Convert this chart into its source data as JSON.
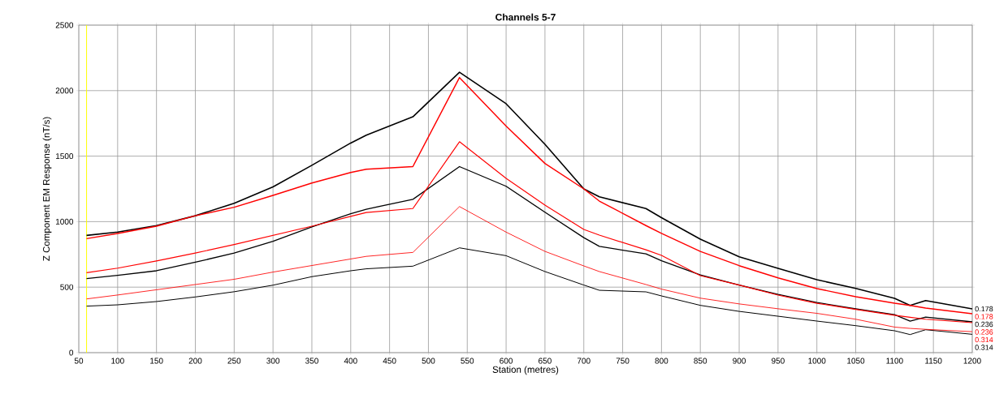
{
  "chart_data": {
    "type": "line",
    "title": "Channels 5-7",
    "xlabel": "Station (metres)",
    "ylabel": "Z Component EM Response (nT/s)",
    "x": [
      60,
      100,
      150,
      200,
      250,
      300,
      350,
      400,
      420,
      480,
      540,
      600,
      650,
      700,
      720,
      780,
      800,
      850,
      900,
      950,
      1000,
      1050,
      1100,
      1120,
      1140,
      1200
    ],
    "series": [
      {
        "name": "0.178",
        "color": "#000000",
        "values": [
          895,
          920,
          970,
          1045,
          1140,
          1265,
          1430,
          1600,
          1660,
          1800,
          2140,
          1900,
          1590,
          1250,
          1190,
          1100,
          1030,
          866,
          732,
          643,
          557,
          490,
          415,
          360,
          397,
          334
        ]
      },
      {
        "name": "0.178",
        "color": "#ff0000",
        "values": [
          870,
          910,
          965,
          1045,
          1110,
          1200,
          1295,
          1375,
          1400,
          1420,
          2100,
          1730,
          1444,
          1250,
          1157,
          970,
          910,
          773,
          664,
          571,
          489,
          427,
          377,
          360,
          340,
          297
        ]
      },
      {
        "name": "0.236",
        "color": "#000000",
        "values": [
          565,
          590,
          625,
          690,
          760,
          850,
          960,
          1060,
          1095,
          1170,
          1420,
          1270,
          1072,
          878,
          811,
          754,
          701,
          593,
          516,
          444,
          383,
          334,
          290,
          241,
          272,
          235
        ]
      },
      {
        "name": "0.236",
        "color": "#ff0000",
        "values": [
          610,
          645,
          700,
          760,
          825,
          895,
          965,
          1040,
          1070,
          1100,
          1610,
          1330,
          1126,
          940,
          897,
          785,
          742,
          588,
          516,
          439,
          377,
          330,
          285,
          270,
          255,
          229
        ]
      },
      {
        "name": "0.314",
        "color": "#000000",
        "values": [
          355,
          365,
          390,
          425,
          465,
          515,
          580,
          625,
          640,
          660,
          800,
          740,
          619,
          516,
          476,
          464,
          433,
          361,
          315,
          278,
          241,
          206,
          167,
          138,
          175,
          140
        ]
      },
      {
        "name": "0.314",
        "color": "#ff0000",
        "values": [
          410,
          440,
          480,
          520,
          560,
          615,
          665,
          715,
          735,
          765,
          1115,
          920,
          773,
          662,
          619,
          520,
          485,
          416,
          372,
          335,
          300,
          255,
          195,
          185,
          178,
          160
        ]
      }
    ],
    "xlim": [
      50,
      1200
    ],
    "xticks": [
      50,
      100,
      150,
      200,
      250,
      300,
      350,
      400,
      450,
      500,
      550,
      600,
      650,
      700,
      750,
      800,
      850,
      900,
      950,
      1000,
      1050,
      1100,
      1150,
      1200
    ],
    "ylim": [
      0,
      2500
    ],
    "yticks": [
      0,
      500,
      1000,
      1500,
      2000,
      2500
    ],
    "ref_lines": [
      {
        "axis": "x",
        "value": 60,
        "color": "#ffff00"
      }
    ],
    "grid": true,
    "marker": "none",
    "line_style": "solid"
  }
}
